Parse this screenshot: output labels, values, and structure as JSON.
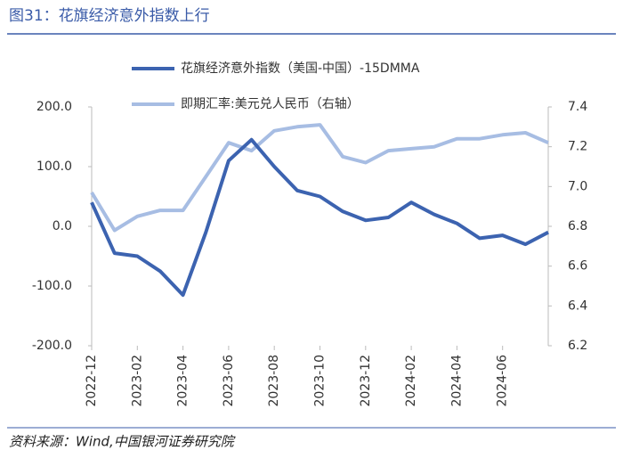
{
  "chart_data": {
    "type": "line",
    "title": "图31：花旗经济意外指数上行",
    "source": "资料来源：Wind,中国银河证券研究院",
    "x": [
      "2022-12",
      "2023-01",
      "2023-02",
      "2023-03",
      "2023-04",
      "2023-05",
      "2023-06",
      "2023-07",
      "2023-08",
      "2023-09",
      "2023-10",
      "2023-11",
      "2023-12",
      "2024-01",
      "2024-02",
      "2024-03",
      "2024-04",
      "2024-05",
      "2024-06",
      "2024-07",
      "2024-08"
    ],
    "xticks": [
      "2022-12",
      "2023-02",
      "2023-04",
      "2023-06",
      "2023-08",
      "2023-10",
      "2023-12",
      "2024-02",
      "2024-04",
      "2024-06"
    ],
    "series": [
      {
        "name": "花旗经济意外指数（美国-中国）-15DMMA",
        "color": "#3c63b0",
        "axis": "y",
        "values": [
          40,
          -45,
          -50,
          -75,
          -115,
          -10,
          110,
          145,
          100,
          60,
          50,
          25,
          10,
          15,
          40,
          20,
          5,
          -20,
          -15,
          -30,
          -10
        ]
      },
      {
        "name": "即期汇率:美元兑人民币（右轴）",
        "color": "#a7bde3",
        "axis": "y2",
        "values": [
          6.97,
          6.78,
          6.85,
          6.88,
          6.88,
          7.05,
          7.22,
          7.18,
          7.28,
          7.3,
          7.31,
          7.15,
          7.12,
          7.18,
          7.19,
          7.2,
          7.24,
          7.24,
          7.26,
          7.27,
          7.22
        ]
      }
    ],
    "ylim": [
      -200,
      200
    ],
    "yticks": [
      {
        "value": -200,
        "label": "-200.0"
      },
      {
        "value": -100,
        "label": "-100.0"
      },
      {
        "value": 0,
        "label": "0.0"
      },
      {
        "value": 100,
        "label": "100.0"
      },
      {
        "value": 200,
        "label": "200.0"
      }
    ],
    "y2lim": [
      6.2,
      7.4
    ],
    "y2ticks": [
      6.2,
      6.4,
      6.6,
      6.8,
      {
        "value": 7,
        "label": "7.0"
      },
      7.2,
      7.4
    ],
    "legend": "top"
  }
}
